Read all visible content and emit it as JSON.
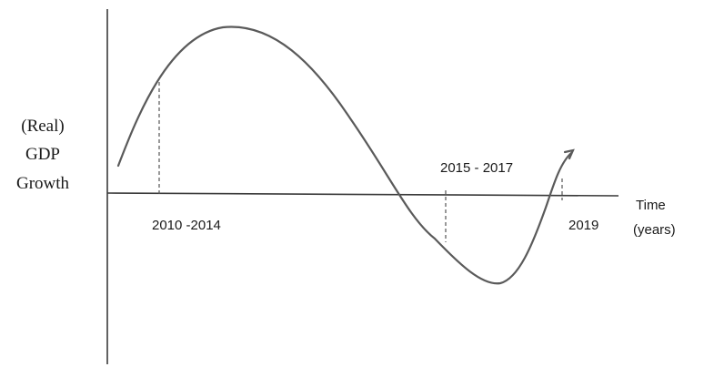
{
  "y_axis_label": {
    "lines": [
      "(Real)",
      "GDP",
      "Growth"
    ]
  },
  "x_axis_label": {
    "lines": [
      "Time",
      "(years)"
    ]
  },
  "period_labels": {
    "boom": "2010 -2014",
    "recession": "2015 - 2017",
    "recovery": "2019"
  },
  "colors": {
    "axis": "#3a3a3a",
    "curve": "#5a5a5a",
    "text": "#1a1a1a"
  }
}
